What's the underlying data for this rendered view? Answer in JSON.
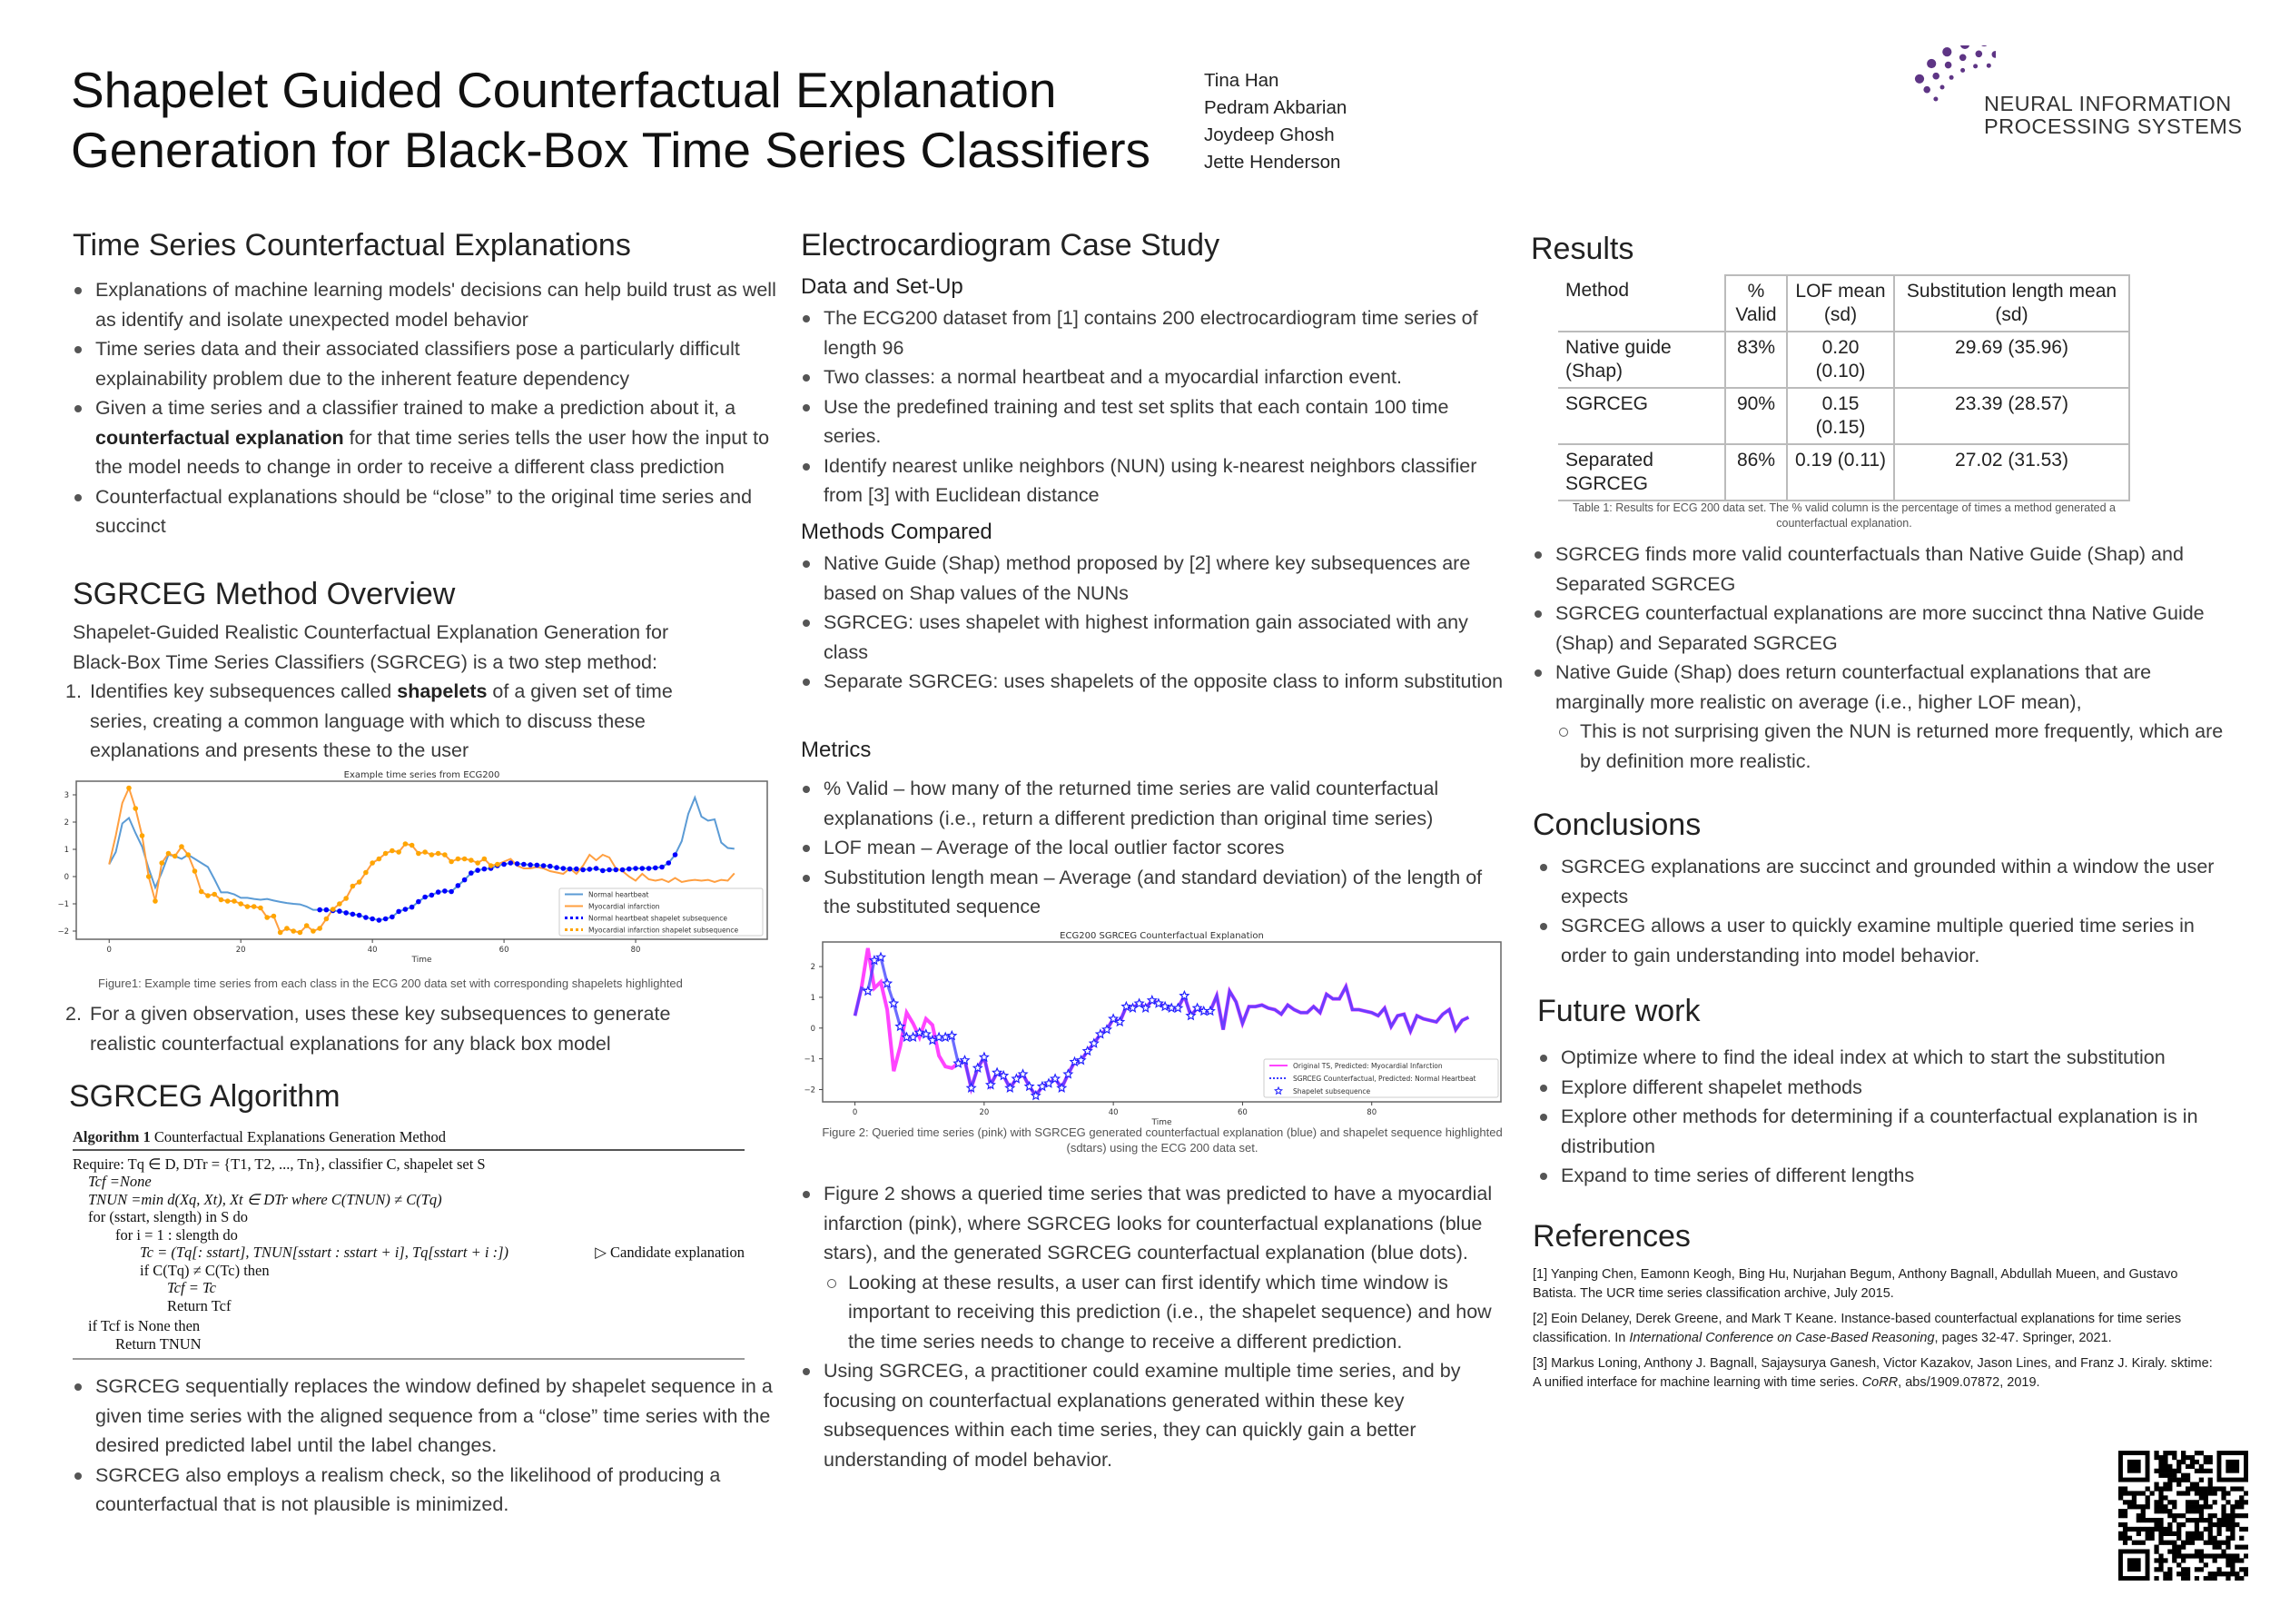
{
  "title": "Shapelet Guided Counterfactual Explanation Generation for Black-Box Time Series Classifiers",
  "authors": [
    "Tina Han",
    "Pedram Akbarian",
    "Joydeep Ghosh",
    "Jette Henderson"
  ],
  "logo": {
    "line1": "NEURAL INFORMATION",
    "line2": "PROCESSING SYSTEMS",
    "color": "#6b3f8f"
  },
  "col1": {
    "tsce": {
      "heading": "Time Series Counterfactual Explanations",
      "bullets": [
        {
          "pre": "Explanations of machine learning models' decisions can help build trust as well as identify and isolate unexpected model behavior"
        },
        {
          "pre": "Time series data and their associated classifiers pose a particularly difficult explainability problem due to the inherent feature dependency"
        },
        {
          "pre": "Given a time series and a classifier trained to make a prediction about it, a ",
          "bold": "counterfactual explanation",
          "post": " for that time series tells the user how the input to the model needs to change in order to receive a different class prediction"
        },
        {
          "pre": "Counterfactual explanations should be “close” to the original time series and succinct"
        }
      ]
    },
    "overview": {
      "heading": "SGRCEG Method Overview",
      "intro": "Shapelet-Guided Realistic Counterfactual Explanation Generation for Black-Box Time Series Classifiers (SGRCEG) is a two step method:",
      "step1": {
        "num": "1.",
        "pre": "Identifies key subsequences called ",
        "bold": "shapelets",
        "post": " of a given set of time series, creating a common language with which to discuss these explanations and presents these to the user"
      },
      "figure1_caption": "Figure1: Example time series from each class in the ECG 200 data set with corresponding shapelets highlighted",
      "step2": {
        "num": "2.",
        "text": "For a given observation, uses these key subsequences to generate realistic counterfactual explanations for any black box model"
      }
    },
    "algorithm": {
      "heading": "SGRCEG Algorithm",
      "label": "Algorithm 1",
      "name": "Counterfactual Explanations Generation Method",
      "lines": [
        "Require: Tq ∈ D, DTr = {T1, T2, ..., Tn}, classifier C, shapelet set S",
        "Tcf =None",
        "TNUN =min d(Xq, Xt), Xt ∈ DTr where C(TNUN) ≠ C(Tq)",
        "for (sstart, slength) in S do",
        "for i = 1 : slength do",
        "Tc = (Tq[: sstart], TNUN[sstart : sstart + i], Tq[sstart + i :])",
        "if C(Tq) ≠ C(Tc) then",
        "Tcf = Tc",
        "Return Tcf",
        "if Tcf is None then",
        "Return TNUN"
      ],
      "comment": "▷ Candidate explanation",
      "bullets": [
        "SGRCEG sequentially replaces the window defined by shapelet sequence in a given  time series with the aligned sequence from a “close” time series with the desired predicted label until the label changes.",
        " SGRCEG also employs a realism check, so the likelihood of producing a counterfactual that is not plausible is minimized."
      ]
    }
  },
  "col2": {
    "heading": "Electrocardiogram Case Study",
    "data_setup": {
      "heading": "Data and Set-Up",
      "bullets": [
        "The ECG200 dataset from [1] contains 200 electrocardiogram time series of length 96",
        "Two classes: a normal heartbeat and a myocardial infarction event.",
        "Use the predefined training and test set splits that each contain 100 time series.",
        "Identify nearest unlike neighbors (NUN) using k-nearest neighbors classifier from [3] with Euclidean distance"
      ]
    },
    "methods": {
      "heading": "Methods Compared",
      "bullets": [
        "Native Guide (Shap) method proposed by [2] where key subsequences are based on Shap values of the NUNs",
        "SGRCEG: uses shapelet with highest information gain associated with any class",
        "Separate SGRCEG: uses shapelets of the opposite class to inform substitution"
      ]
    },
    "metrics": {
      "heading": "Metrics",
      "bullets": [
        "% Valid – how many of the returned time series are valid counterfactual explanations (i.e., return a different prediction than original time series)",
        "LOF mean – Average of the local outlier factor scores",
        "Substitution length mean – Average (and standard deviation) of the length of the substituted sequence"
      ]
    },
    "figure2_caption": "Figure 2: Queried time series (pink) with SGRCEG generated counterfactual explanation (blue) and shapelet sequence highlighted (sdtars) using the ECG 200 data set.",
    "bullets": [
      {
        "text": "Figure 2 shows a queried time series that was predicted to have a myocardial infarction (pink), where SGRCEG looks for counterfactual explanations (blue stars), and the generated SGRCEG counterfactual explanation (blue dots).",
        "sub": [
          "Looking at these results, a user can first identify which time window is important to receiving this prediction (i.e., the shapelet sequence) and how the time series needs to change to receive a different prediction."
        ]
      },
      {
        "text": "Using SGRCEG, a practitioner could examine multiple time series, and by focusing on counterfactual explanations generated within these key subsequences within each time series, they can quickly gain a better understanding of model behavior."
      }
    ]
  },
  "col3": {
    "results": {
      "heading": "Results",
      "table": {
        "headers": [
          "Method",
          "% Valid",
          "LOF mean (sd)",
          "Substitution length mean (sd)"
        ],
        "rows": [
          [
            "Native guide (Shap)",
            "83%",
            "0.20 (0.10)",
            "29.69 (35.96)"
          ],
          [
            "SGRCEG",
            "90%",
            "0.15 (0.15)",
            "23.39 (28.57)"
          ],
          [
            "Separated SGRCEG",
            "86%",
            "0.19 (0.11)",
            "27.02 (31.53)"
          ]
        ],
        "caption": "Table 1: Results for ECG 200 data set. The % valid column is the percentage of times a method generated a counterfactual explanation."
      },
      "bullets": [
        {
          "text": "SGRCEG finds more valid counterfactuals than Native Guide (Shap)  and Separated SGRCEG"
        },
        {
          "text": "SGRCEG counterfactual explanations are more succinct thna Native Guide (Shap) and Separated SGRCEG"
        },
        {
          "text": "Native Guide (Shap) does return counterfactual explanations that are marginally more realistic on average (i.e., higher LOF mean),",
          "sub": [
            "This is not surprising given the NUN is returned more frequently, which are by definition more realistic."
          ]
        }
      ]
    },
    "conclusions": {
      "heading": "Conclusions",
      "bullets": [
        "SGRCEG explanations are succinct and grounded within a window the user expects",
        "SGRCEG allows a user to quickly examine multiple queried time series in order to gain understanding into model behavior."
      ]
    },
    "future": {
      "heading": "Future work",
      "bullets": [
        "Optimize where to find the ideal index at which to start the substitution",
        "Explore different shapelet methods",
        "Explore other methods for determining if a counterfactual explanation is in distribution",
        "Expand to time series of different lengths"
      ]
    },
    "references": {
      "heading": "References",
      "items": [
        {
          "pre": "[1] Yanping Chen, Eamonn Keogh, Bing Hu, Nurjahan Begum, Anthony Bagnall, Abdullah Mueen, and Gustavo Batista. The UCR time series classification archive, July 2015."
        },
        {
          "pre": "[2] Eoin Delaney, Derek Greene, and Mark T Keane. Instance-based counterfactual explanations for time series classification. In ",
          "ital": "International Conference on Case-Based Reasoning",
          "post": ", pages 32-47. Springer, 2021."
        },
        {
          "pre": "[3] Markus Loning, Anthony J. Bagnall, Sajaysurya Ganesh, Victor Kazakov, Jason Lines, and Franz J. Kiraly. sktime: A unified interface for machine learning with time series. ",
          "ital": "CoRR",
          "post": ", abs/1909.07872, 2019."
        }
      ]
    }
  },
  "chart_data": [
    {
      "type": "line",
      "title": "Example time series from ECG200",
      "xlabel": "Time",
      "ylabel": "",
      "xlim": [
        -5,
        100
      ],
      "ylim": [
        -2.3,
        3.5
      ],
      "xticks": [
        0,
        20,
        40,
        60,
        80
      ],
      "yticks": [
        3,
        2,
        1,
        0,
        -1,
        -2
      ],
      "legend": "bottom-right",
      "grid": false,
      "series": [
        {
          "name": "Normal heartbeat",
          "color": "#5b9bd5",
          "values": [
            0.45,
            0.9,
            1.95,
            2.15,
            1.6,
            1.1,
            0.3,
            -0.4,
            0.15,
            0.8,
            0.75,
            0.65,
            0.8,
            0.65,
            0.5,
            0.35,
            -0.1,
            -0.58,
            -0.58,
            -0.65,
            -0.78,
            -0.78,
            -0.82,
            -0.85,
            -0.82,
            -0.88,
            -0.93,
            -0.97,
            -1.0,
            -1.02,
            -1.1,
            -1.22,
            -1.22,
            -1.22,
            -1.25,
            -1.27,
            -1.33,
            -1.38,
            -1.42,
            -1.5,
            -1.55,
            -1.6,
            -1.55,
            -1.48,
            -1.28,
            -1.2,
            -1.12,
            -0.92,
            -0.75,
            -0.68,
            -0.57,
            -0.53,
            -0.55,
            -0.33,
            -0.12,
            0.13,
            0.23,
            0.28,
            0.3,
            0.4,
            0.45,
            0.5,
            0.47,
            0.45,
            0.43,
            0.42,
            0.4,
            0.38,
            0.33,
            0.3,
            0.28,
            0.28,
            0.25,
            0.27,
            0.3,
            0.22,
            0.25,
            0.25,
            0.25,
            0.28,
            0.3,
            0.3,
            0.3,
            0.32,
            0.35,
            0.5,
            0.8,
            1.3,
            2.3,
            2.9,
            2.2,
            2.05,
            2.1,
            1.25,
            1.05,
            1.02
          ]
        },
        {
          "name": "Myocardial infarction",
          "color": "#ff9f40",
          "values": [
            0.45,
            1.5,
            2.7,
            3.25,
            2.5,
            1.5,
            0.0,
            -0.9,
            0.5,
            0.85,
            0.75,
            1.1,
            0.8,
            0.2,
            -0.55,
            -0.7,
            -0.65,
            -0.85,
            -0.9,
            -0.9,
            -1.0,
            -1.1,
            -1.1,
            -1.15,
            -1.5,
            -1.45,
            -2.05,
            -1.9,
            -2.0,
            -2.05,
            -1.8,
            -2.0,
            -1.9,
            -1.55,
            -1.2,
            -1.0,
            -0.8,
            -0.35,
            -0.2,
            0.15,
            0.5,
            0.65,
            0.85,
            0.95,
            0.9,
            1.2,
            1.15,
            0.85,
            0.9,
            0.8,
            0.85,
            0.8,
            0.55,
            0.65,
            0.65,
            0.6,
            0.5,
            0.65,
            0.4,
            0.45,
            0.55,
            0.65,
            0.4,
            0.3,
            0.3,
            0.35,
            0.3,
            0.2,
            0.15,
            0.1,
            0.3,
            0.1,
            0.4,
            0.8,
            0.6,
            0.8,
            0.7,
            0.3,
            0.2,
            0.0,
            -0.15,
            0.1,
            -0.1,
            -0.15,
            -0.1,
            -0.2,
            -0.05,
            -0.2,
            -0.15,
            -0.12,
            -0.15,
            -0.12,
            -0.2,
            -0.12,
            -0.15,
            0.12
          ]
        },
        {
          "name": "Normal heartbeat shapelet subsequence",
          "color": "#0000ff",
          "of": 0,
          "range": [
            32,
            86
          ]
        },
        {
          "name": "Myocardial infarction shapelet subsequence",
          "color": "#ffa500",
          "of": 1,
          "range": [
            3,
            59
          ]
        }
      ]
    },
    {
      "type": "line",
      "title": "ECG200 SGRCEG Counterfactual Explanation",
      "xlabel": "Time",
      "ylabel": "",
      "xlim": [
        -5,
        100
      ],
      "ylim": [
        -2.4,
        2.8
      ],
      "xticks": [
        0,
        20,
        40,
        60,
        80
      ],
      "yticks": [
        2,
        1,
        0,
        -1,
        -2
      ],
      "legend": "bottom-right",
      "grid": false,
      "series": [
        {
          "name": "Original TS, Predicted: Myocardial Infarction",
          "color": "#ff44ff",
          "values": [
            0.4,
            1.3,
            2.6,
            1.3,
            1.5,
            0.6,
            -1.4,
            -0.6,
            0.5,
            0.15,
            -0.3,
            0.3,
            0.1,
            -0.9,
            -1.25,
            -1.3,
            -1.15,
            -1.05,
            -1.95,
            -1.3,
            -0.95,
            -1.85,
            -1.45,
            -1.55,
            -1.95,
            -1.65,
            -1.5,
            -1.9,
            -2.2,
            -1.9,
            -1.8,
            -1.65,
            -1.95,
            -1.5,
            -1.1,
            -1.05,
            -0.75,
            -0.5,
            -0.2,
            -0.05,
            0.3,
            0.2,
            0.7,
            0.65,
            0.8,
            0.65,
            0.9,
            0.8,
            0.7,
            0.65,
            0.65,
            1.05,
            0.4,
            0.65,
            0.55,
            0.55,
            1.05,
            -0.05,
            1.2,
            0.85,
            0.15,
            0.7,
            0.7,
            0.75,
            0.65,
            0.6,
            0.45,
            0.75,
            0.6,
            0.5,
            0.5,
            0.7,
            0.5,
            1.1,
            0.95,
            0.95,
            1.35,
            0.6,
            0.6,
            0.55,
            0.5,
            0.4,
            0.65,
            0.05,
            0.4,
            0.45,
            -0.1,
            0.4,
            0.3,
            0.25,
            0.2,
            0.45,
            0.6,
            -0.05,
            0.25,
            0.35
          ]
        },
        {
          "name": "SGRCEG Counterfactual, Predicted: Normal Heartbeat",
          "color": "#3b3bff",
          "values": [
            0.4,
            1.3,
            1.2,
            2.2,
            2.3,
            1.45,
            0.8,
            0.05,
            -0.3,
            -0.3,
            -0.15,
            -0.2,
            -0.4,
            -0.3,
            -0.3,
            -0.25,
            -1.15,
            -1.05,
            -1.95,
            -1.3,
            -0.95,
            -1.85,
            -1.45,
            -1.55,
            -1.95,
            -1.65,
            -1.5,
            -1.9,
            -2.2,
            -1.9,
            -1.8,
            -1.65,
            -1.95,
            -1.5,
            -1.1,
            -1.05,
            -0.75,
            -0.5,
            -0.2,
            -0.05,
            0.3,
            0.2,
            0.7,
            0.65,
            0.8,
            0.65,
            0.9,
            0.8,
            0.7,
            0.65,
            0.65,
            1.05,
            0.4,
            0.65,
            0.55,
            0.55,
            1.05,
            -0.05,
            1.2,
            0.85,
            0.15,
            0.7,
            0.7,
            0.75,
            0.65,
            0.6,
            0.45,
            0.75,
            0.6,
            0.5,
            0.5,
            0.7,
            0.5,
            1.1,
            0.95,
            0.95,
            1.35,
            0.6,
            0.6,
            0.55,
            0.5,
            0.4,
            0.65,
            0.05,
            0.4,
            0.45,
            -0.1,
            0.4,
            0.3,
            0.25,
            0.2,
            0.45,
            0.6,
            -0.05,
            0.25,
            0.35
          ]
        },
        {
          "name": "Shapelet subsequence",
          "color": "#2222ff",
          "of": 1,
          "range": [
            2,
            55
          ],
          "marker": "star"
        }
      ]
    }
  ]
}
